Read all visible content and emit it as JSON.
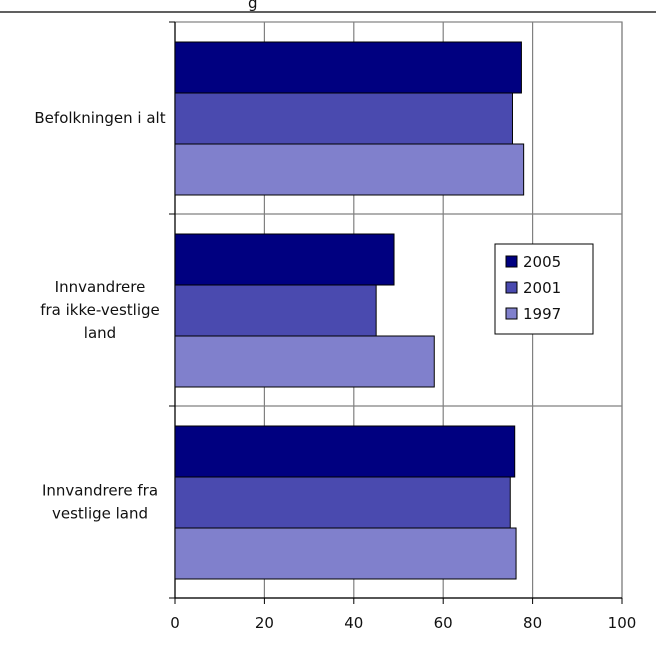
{
  "chart_data": {
    "type": "bar",
    "orientation": "horizontal",
    "title_fragment": "g",
    "categories": [
      [
        "Befolkningen i alt"
      ],
      [
        "Innvandrere",
        "fra ikke-vestlige",
        "land"
      ],
      [
        "Innvandrere fra",
        "vestlige land"
      ]
    ],
    "series": [
      {
        "name": "2005",
        "color": "#000080",
        "values": [
          77.5,
          49,
          76
        ]
      },
      {
        "name": "2001",
        "color": "#4a4aaf",
        "values": [
          75.5,
          45,
          75
        ]
      },
      {
        "name": "1997",
        "color": "#8080cc",
        "values": [
          78,
          58,
          76.3
        ]
      }
    ],
    "xlim": [
      0,
      100
    ],
    "xticks": [
      "0",
      "20",
      "40",
      "60",
      "80",
      "100"
    ],
    "grid": true,
    "legend": {
      "position": "right",
      "order": [
        "2005",
        "2001",
        "1997"
      ]
    }
  }
}
